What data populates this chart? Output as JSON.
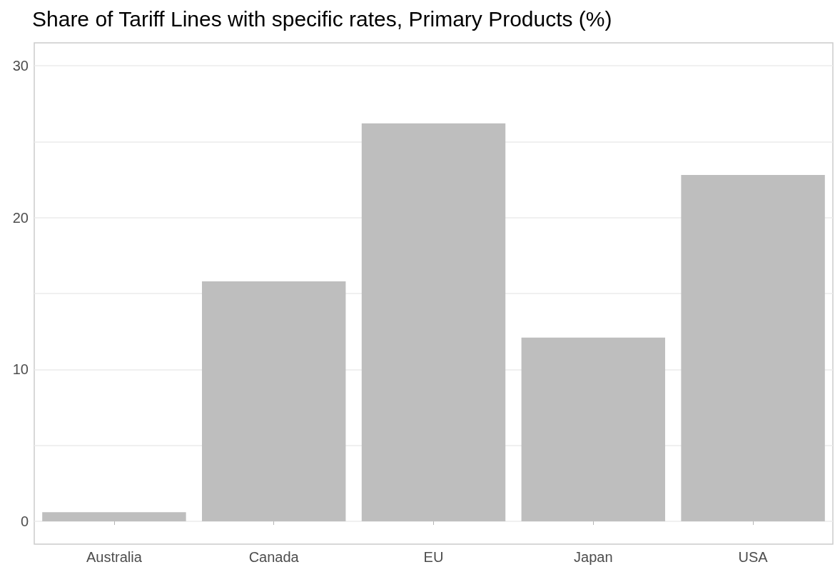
{
  "chart_data": {
    "type": "bar",
    "title": "Share of Tariff Lines with specific rates, Primary Products (%)",
    "categories": [
      "Australia",
      "Canada",
      "EU",
      "Japan",
      "USA"
    ],
    "values": [
      0.6,
      15.8,
      26.2,
      12.1,
      22.8
    ],
    "color": "#bebebe",
    "ylim": [
      -1.5,
      31.5
    ],
    "yticks": [
      0,
      {
        "value": 5,
        "label": null
      },
      10,
      {
        "value": 15,
        "label": null
      },
      20,
      {
        "value": 25,
        "label": null
      },
      30
    ],
    "grid": "y"
  }
}
